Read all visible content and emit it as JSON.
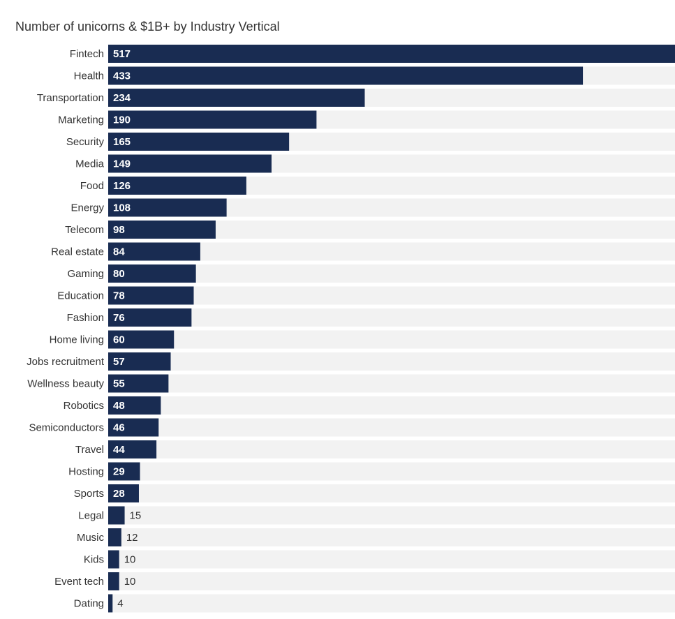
{
  "chart_data": {
    "type": "bar",
    "orientation": "horizontal",
    "title": "Number of unicorns & $1B+ by Industry Vertical",
    "xlabel": "",
    "ylabel": "",
    "xlim": [
      0,
      517
    ],
    "grid": false,
    "legend": "none",
    "colors": {
      "bar": "#192c52",
      "track": "#f2f2f2",
      "text": "#333333",
      "label_inside": "#ffffff"
    },
    "categories": [
      "Fintech",
      "Health",
      "Transportation",
      "Marketing",
      "Security",
      "Media",
      "Food",
      "Energy",
      "Telecom",
      "Real estate",
      "Gaming",
      "Education",
      "Fashion",
      "Home living",
      "Jobs recruitment",
      "Wellness beauty",
      "Robotics",
      "Semiconductors",
      "Travel",
      "Hosting",
      "Sports",
      "Legal",
      "Music",
      "Kids",
      "Event tech",
      "Dating"
    ],
    "values": [
      517,
      433,
      234,
      190,
      165,
      149,
      126,
      108,
      98,
      84,
      80,
      78,
      76,
      60,
      57,
      55,
      48,
      46,
      44,
      29,
      28,
      15,
      12,
      10,
      10,
      4
    ]
  }
}
